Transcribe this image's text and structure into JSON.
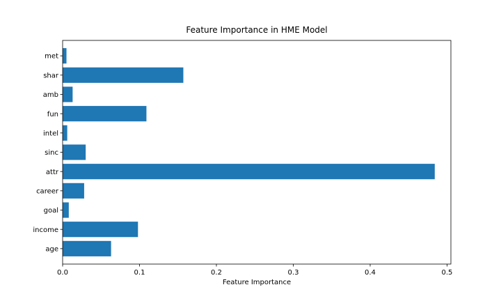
{
  "chart_data": {
    "type": "bar",
    "orientation": "horizontal",
    "title": "Feature Importance in HME Model",
    "xlabel": "Feature Importance",
    "ylabel": "",
    "categories": [
      "age",
      "income",
      "goal",
      "career",
      "attr",
      "sinc",
      "intel",
      "fun",
      "amb",
      "shar",
      "met"
    ],
    "values": [
      0.063,
      0.098,
      0.008,
      0.028,
      0.484,
      0.03,
      0.006,
      0.109,
      0.013,
      0.157,
      0.005
    ],
    "xlim": [
      0,
      0.505
    ],
    "xticks": [
      0,
      0.1,
      0.2,
      0.3,
      0.4,
      0.5
    ],
    "xtick_labels": [
      "0.0",
      "0.1",
      "0.2",
      "0.3",
      "0.4",
      "0.5"
    ],
    "grid": false,
    "legend": "none",
    "bar_color": "#1f77b4"
  }
}
